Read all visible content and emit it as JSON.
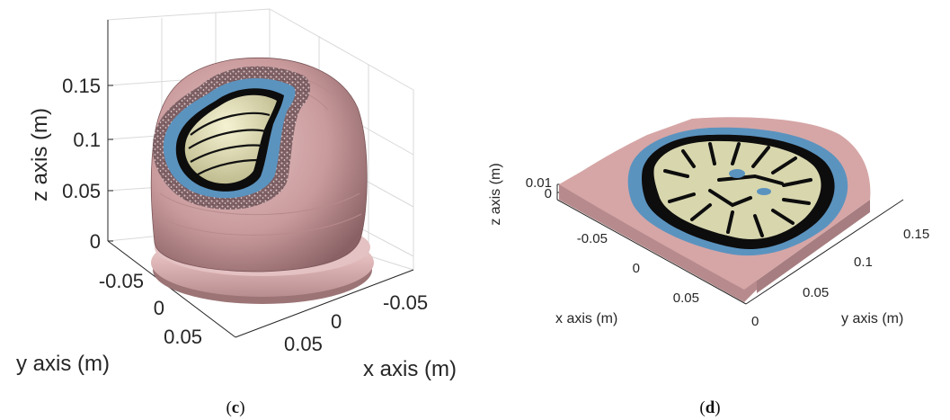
{
  "panels": [
    {
      "id": "c",
      "caption_prefix": "(",
      "caption_letter": "c",
      "caption_suffix": ")",
      "z_axis_label": "z axis (m)",
      "y_axis_label": "y axis (m)",
      "x_axis_label": "x axis (m)",
      "z_ticks": [
        "0.15",
        "0.1",
        "0.05",
        "0"
      ],
      "y_ticks": [
        "-0.05",
        "0",
        "0.05"
      ],
      "x_ticks": [
        "-0.05",
        "0",
        "0.05"
      ]
    },
    {
      "id": "d",
      "caption_prefix": "(",
      "caption_letter": "d",
      "caption_suffix": ")",
      "z_axis_label": "z axis (m)",
      "y_axis_label": "y axis (m)",
      "x_axis_label": "x axis (m)",
      "z_ticks": [
        "0.01",
        "0"
      ],
      "x_ticks": [
        "-0.05",
        "0",
        "0.05"
      ],
      "y_ticks": [
        "0",
        "0.05",
        "0.1",
        "0.15"
      ]
    }
  ],
  "colors": {
    "skin": "#d6a6a6",
    "skull": "#8c6b6e",
    "csf": "#5b93bf",
    "white_matter": "#d8d6ad",
    "grey_matter": "#0d0d0d"
  }
}
